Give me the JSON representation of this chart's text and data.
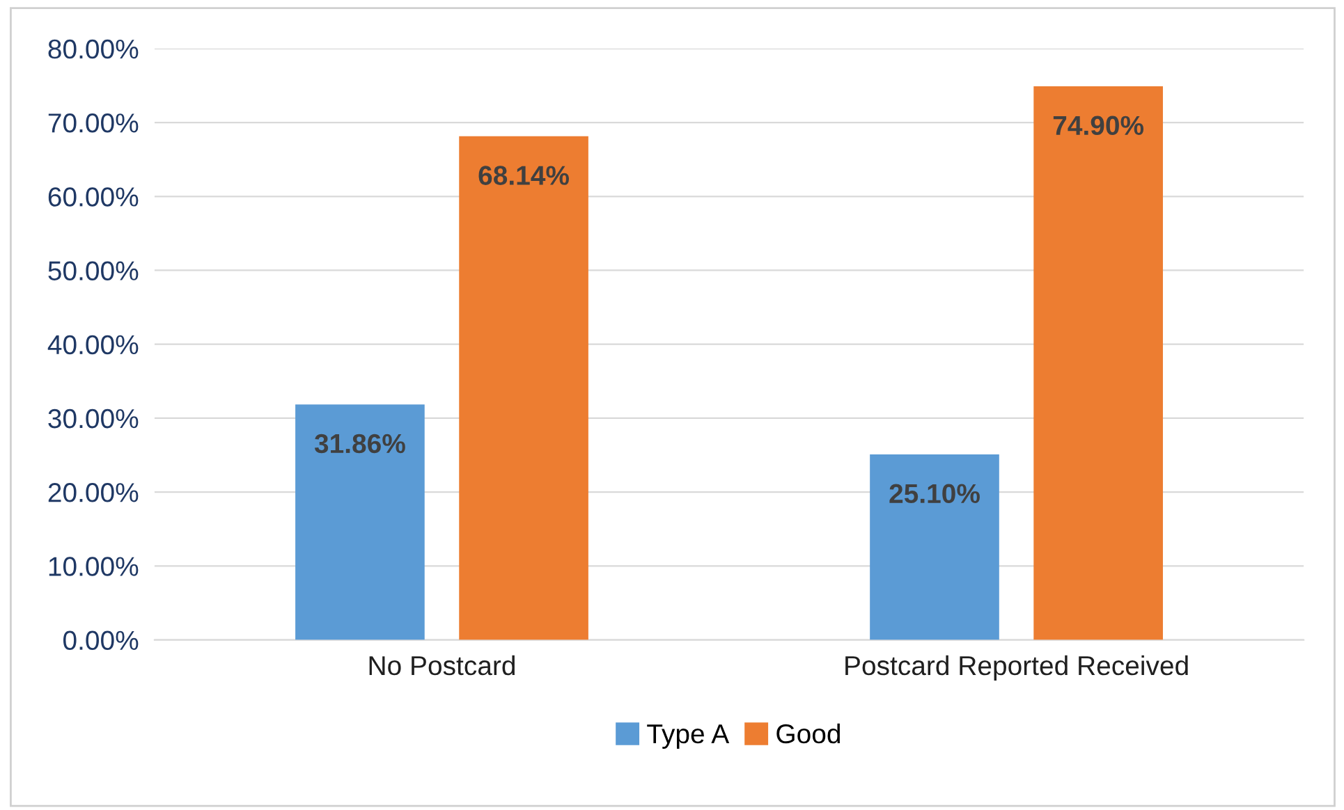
{
  "chart_data": {
    "type": "bar",
    "categories": [
      "No Postcard",
      "Postcard Reported Received"
    ],
    "series": [
      {
        "name": "Type A",
        "color": "#5b9bd5",
        "values": [
          31.86,
          25.1
        ],
        "value_labels": [
          "31.86%",
          "25.10%"
        ]
      },
      {
        "name": "Good",
        "color": "#ed7d31",
        "values": [
          68.14,
          74.9
        ],
        "value_labels": [
          "68.14%",
          "74.90%"
        ]
      }
    ],
    "ylim": [
      0,
      80
    ],
    "yticks": [
      {
        "value": 0,
        "label": "0.00%"
      },
      {
        "value": 10,
        "label": "10.00%"
      },
      {
        "value": 20,
        "label": "20.00%"
      },
      {
        "value": 30,
        "label": "30.00%"
      },
      {
        "value": 40,
        "label": "40.00%"
      },
      {
        "value": 50,
        "label": "50.00%"
      },
      {
        "value": 60,
        "label": "60.00%"
      },
      {
        "value": 70,
        "label": "70.00%"
      },
      {
        "value": 80,
        "label": "80.00%"
      }
    ],
    "grid": "y",
    "legend": "bottom"
  }
}
